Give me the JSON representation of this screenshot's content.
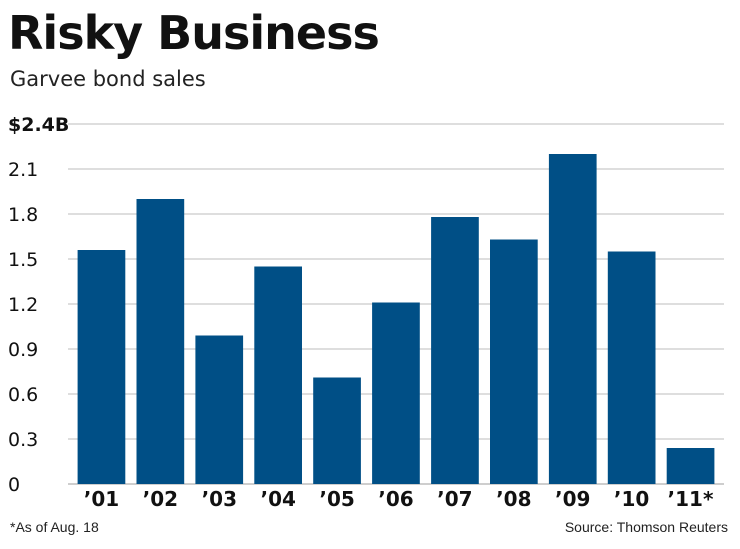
{
  "colors": {
    "bar": "#004f86",
    "grid": "#bdbdbd",
    "text": "#111111"
  },
  "footnote": "*As of Aug. 18",
  "source": "Source: Thomson Reuters",
  "chart_data": {
    "type": "bar",
    "title": "Risky Business",
    "subtitle": "Garvee bond sales",
    "xlabel": "",
    "ylabel": "",
    "categories": [
      "’01",
      "’02",
      "’03",
      "’04",
      "’05",
      "’06",
      "’07",
      "’08",
      "’09",
      "’10",
      "’11*"
    ],
    "values": [
      1.56,
      1.9,
      0.99,
      1.45,
      0.71,
      1.21,
      1.78,
      1.63,
      2.2,
      1.55,
      0.24
    ],
    "ylim": [
      0,
      2.4
    ],
    "yticks": [
      0,
      0.3,
      0.6,
      0.9,
      1.2,
      1.5,
      1.8,
      2.1,
      2.4
    ],
    "ytick_labels": [
      "0",
      "0.3",
      "0.6",
      "0.9",
      "1.2",
      "1.5",
      "1.8",
      "2.1",
      "$2.4B"
    ],
    "grid": true,
    "legend": "none"
  }
}
